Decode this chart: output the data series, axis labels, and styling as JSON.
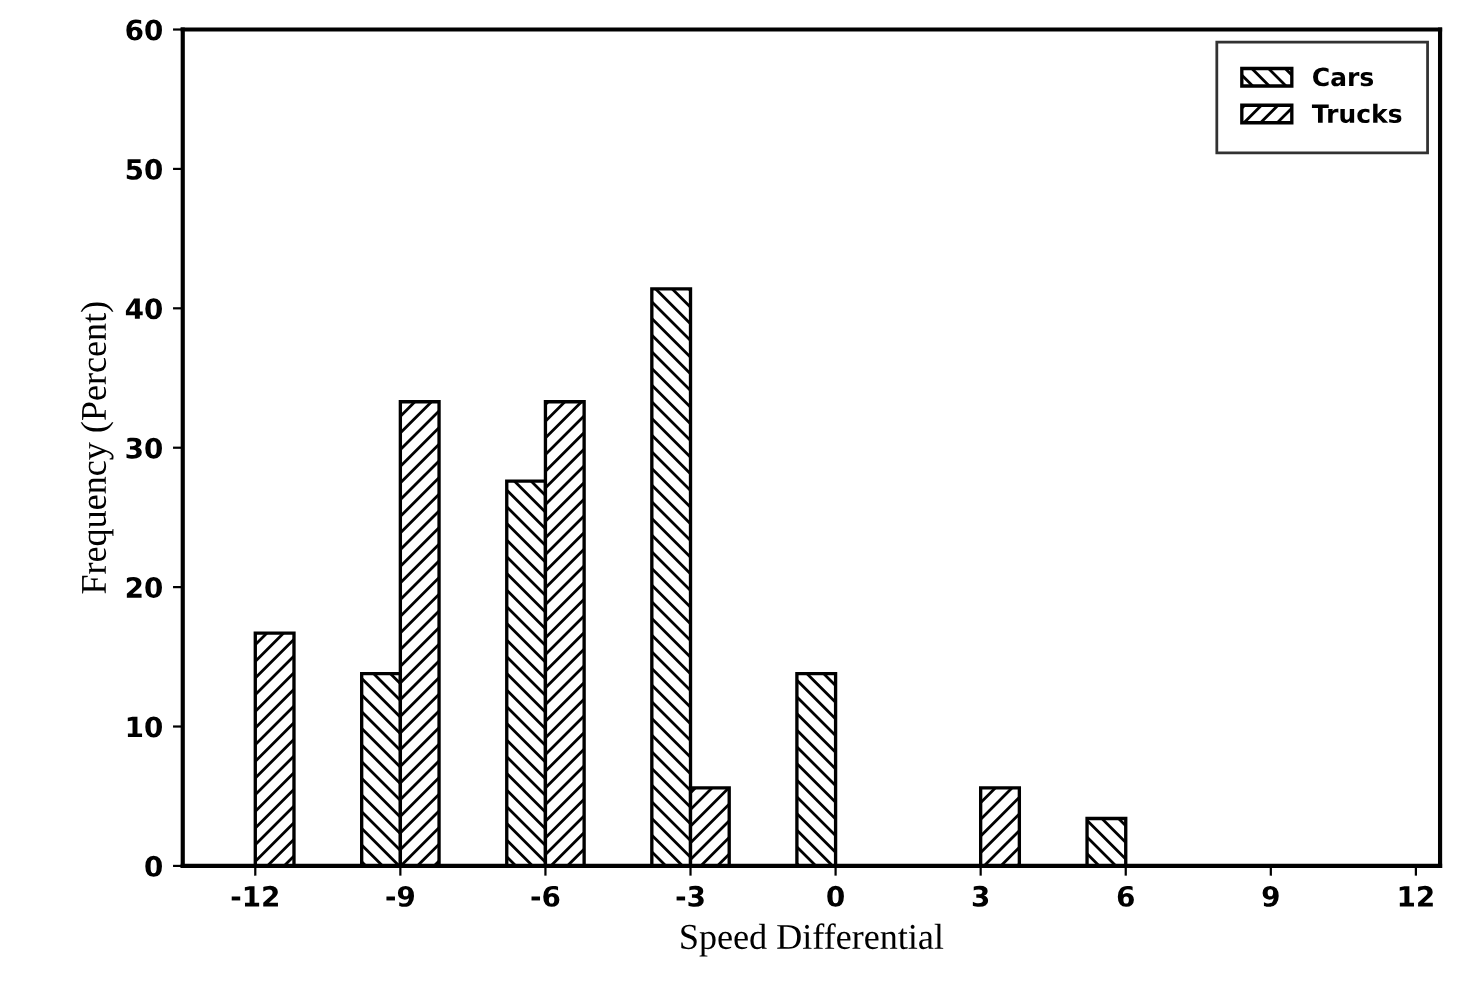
{
  "chart_data": {
    "type": "bar",
    "xlabel": "Speed Differential",
    "ylabel": "Frequency (Percent)",
    "x": [
      -12,
      -9,
      -6,
      -3,
      0,
      3,
      6,
      9,
      12
    ],
    "series": [
      {
        "name": "Cars",
        "color": "#000000",
        "values": [
          0,
          13.8,
          27.6,
          41.4,
          13.8,
          0,
          3.4,
          0,
          0
        ]
      },
      {
        "name": "Trucks",
        "color": "#000000",
        "values": [
          16.7,
          33.3,
          33.3,
          5.6,
          0,
          5.6,
          0,
          0,
          0
        ]
      }
    ],
    "xlim": [
      -13.5,
      12.5
    ],
    "xticks": [
      -12,
      -9,
      -6,
      -3,
      0,
      3,
      6,
      9,
      12
    ],
    "ylim": [
      0,
      60
    ],
    "yticks": [
      0,
      10,
      20,
      30,
      40,
      50,
      60
    ],
    "grid": false,
    "legend": "top right"
  }
}
